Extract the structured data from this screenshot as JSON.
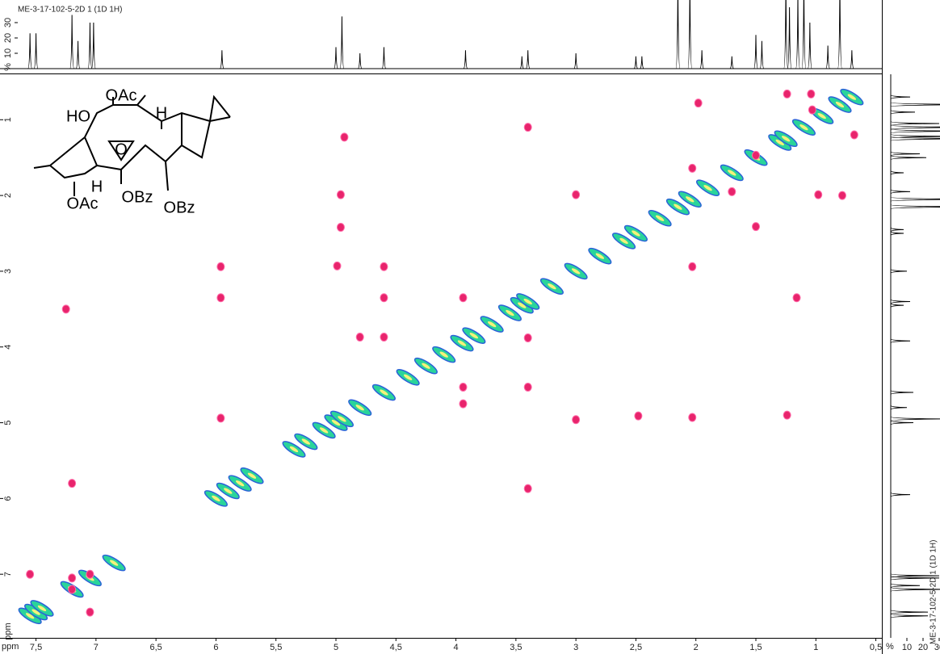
{
  "spectrum_title": "ME-3-17-102-5-2D 1 (1D 1H)",
  "structure": {
    "labels": [
      "OAc",
      "HO",
      "H",
      "O",
      "H",
      "OAc",
      "OBz",
      "OBz"
    ]
  },
  "chart_data": {
    "type": "cosy",
    "x_label": "ppm",
    "y_label": "ppm",
    "xlim": [
      7.8,
      0.45
    ],
    "ylim": [
      0.4,
      7.84
    ],
    "xticks": [
      {
        "value": 7.5,
        "label": "7,5"
      },
      7,
      {
        "value": 6.5,
        "label": "6,5"
      },
      6,
      {
        "value": 5.5,
        "label": "5,5"
      },
      5,
      {
        "value": 4.5,
        "label": "4,5"
      },
      4,
      {
        "value": 3.5,
        "label": "3,5"
      },
      3,
      {
        "value": 2.5,
        "label": "2,5"
      },
      2,
      {
        "value": 1.5,
        "label": "1,5"
      },
      1,
      {
        "value": 0.5,
        "label": "0,5"
      }
    ],
    "yticks": [
      1,
      2,
      3,
      4,
      5,
      6,
      7
    ],
    "series": [
      {
        "color": "#2ad49a",
        "x": [
          7.55,
          7.5,
          7.45,
          7.2,
          7.05,
          6.85,
          6.0,
          5.9,
          5.8,
          5.7,
          5.35,
          5.25,
          5.1,
          5.0,
          4.95,
          4.8,
          4.6,
          4.4,
          4.25,
          4.1,
          3.95,
          3.85,
          3.7,
          3.55,
          3.45,
          3.4,
          3.2,
          3.0,
          2.8,
          2.6,
          2.5,
          2.3,
          2.15,
          2.05,
          1.9,
          1.7,
          1.5,
          1.3,
          1.25,
          1.1,
          0.95,
          0.8,
          0.7
        ],
        "values": [
          7.55,
          7.5,
          7.45,
          7.2,
          7.05,
          6.85,
          6.0,
          5.9,
          5.8,
          5.7,
          5.35,
          5.25,
          5.1,
          5.0,
          4.95,
          4.8,
          4.6,
          4.4,
          4.25,
          4.1,
          3.95,
          3.85,
          3.7,
          3.55,
          3.45,
          3.4,
          3.2,
          3.0,
          2.8,
          2.6,
          2.5,
          2.3,
          2.15,
          2.05,
          1.9,
          1.7,
          1.5,
          1.3,
          1.25,
          1.1,
          0.95,
          0.8,
          0.7
        ]
      },
      {
        "color": "#e8246c",
        "x": [
          1.98,
          1.24,
          1.04,
          1.03,
          0.68,
          3.4,
          4.93,
          1.5,
          2.03,
          1.7,
          4.96,
          1.5,
          4.96,
          3.0,
          0.98,
          0.78,
          4.99,
          4.6,
          5.96,
          2.03,
          5.96,
          4.6,
          3.94,
          1.16,
          4.8,
          4.6,
          3.4,
          3.94,
          3.4,
          3.94,
          3.0,
          5.96,
          2.48,
          2.03,
          1.24,
          3.4,
          7.55,
          7.2,
          7.05,
          7.05,
          7.2,
          7.25,
          7.2
        ],
        "values": [
          0.78,
          0.66,
          0.66,
          0.87,
          1.2,
          1.1,
          1.23,
          1.47,
          1.64,
          1.95,
          1.99,
          2.41,
          2.42,
          1.99,
          1.99,
          2.0,
          2.93,
          2.94,
          2.94,
          2.94,
          3.35,
          3.35,
          3.35,
          3.35,
          3.87,
          3.87,
          3.88,
          4.53,
          4.53,
          4.75,
          4.96,
          4.94,
          4.91,
          4.93,
          4.9,
          5.87,
          7.0,
          7.05,
          7.0,
          7.5,
          7.2,
          3.5,
          5.8
        ]
      }
    ],
    "projection": {
      "shifts": [
        7.55,
        7.5,
        7.2,
        7.15,
        7.05,
        7.02,
        5.95,
        5.0,
        4.95,
        4.8,
        4.6,
        3.92,
        3.45,
        3.4,
        3.0,
        2.5,
        2.45,
        2.15,
        2.05,
        1.95,
        1.7,
        1.5,
        1.45,
        1.25,
        1.22,
        1.15,
        1.1,
        1.05,
        0.9,
        0.8,
        0.7
      ],
      "values": [
        23,
        23,
        35,
        18,
        30,
        30,
        12,
        14,
        34,
        10,
        14,
        12,
        8,
        12,
        10,
        8,
        8,
        60,
        60,
        12,
        8,
        22,
        18,
        60,
        40,
        50,
        60,
        30,
        15,
        60,
        12
      ],
      "top_label": "%",
      "top_lim": [
        0,
        40
      ],
      "top_ticks": [
        10,
        20,
        30
      ],
      "right_label": "%",
      "right_lim": [
        0,
        30
      ],
      "right_ticks": [
        10,
        20,
        30
      ]
    }
  }
}
